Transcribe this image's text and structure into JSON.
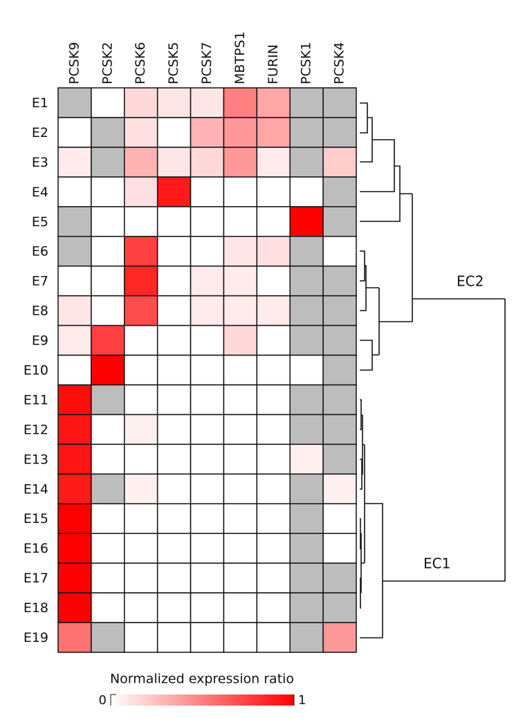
{
  "chart_data": {
    "type": "heatmap",
    "columns": [
      "PCSK9",
      "PCSK2",
      "PCSK6",
      "PCSK5",
      "PCSK7",
      "MBTPS1",
      "FURIN",
      "PCSK1",
      "PCSK4"
    ],
    "rows": [
      "E1",
      "E2",
      "E3",
      "E4",
      "E5",
      "E6",
      "E7",
      "E8",
      "E9",
      "E10",
      "E11",
      "E12",
      "E13",
      "E14",
      "E15",
      "E16",
      "E17",
      "E18",
      "E19"
    ],
    "values": [
      [
        null,
        0,
        0.15,
        0.1,
        0.1,
        0.5,
        0.35,
        null,
        null
      ],
      [
        0,
        null,
        0.12,
        0,
        0.3,
        0.4,
        0.35,
        null,
        null
      ],
      [
        0.08,
        null,
        0.3,
        0.1,
        0.15,
        0.4,
        0.08,
        null,
        0.2
      ],
      [
        0,
        0,
        0.12,
        0.9,
        0,
        0,
        0,
        0,
        null
      ],
      [
        null,
        0,
        0,
        0,
        0,
        0,
        0,
        1,
        null
      ],
      [
        null,
        0,
        0.75,
        0,
        0,
        0.1,
        0.12,
        null,
        0
      ],
      [
        0,
        0,
        0.85,
        0,
        0.08,
        0.08,
        0,
        null,
        null
      ],
      [
        0.1,
        0,
        0.7,
        0,
        0.08,
        0.08,
        0.08,
        null,
        null
      ],
      [
        0.08,
        0.75,
        0,
        0,
        0,
        0.15,
        0,
        null,
        null
      ],
      [
        0,
        1,
        0,
        0,
        0,
        0,
        0,
        0,
        null
      ],
      [
        0.95,
        null,
        0,
        0,
        0,
        0,
        0,
        null,
        null
      ],
      [
        0.92,
        0,
        0.06,
        0,
        0,
        0,
        0,
        null,
        null
      ],
      [
        0.92,
        0,
        0,
        0,
        0,
        0,
        0,
        0.06,
        null
      ],
      [
        0.9,
        null,
        0.06,
        0,
        0,
        0,
        0,
        null,
        0.06
      ],
      [
        1,
        0,
        0,
        0,
        0,
        0,
        0,
        null,
        0
      ],
      [
        1,
        0,
        0,
        0,
        0,
        0,
        0,
        null,
        0
      ],
      [
        1,
        0,
        0,
        0,
        0,
        0,
        0,
        null,
        null
      ],
      [
        1,
        0,
        0,
        0,
        0,
        0,
        0,
        null,
        null
      ],
      [
        0.55,
        null,
        0,
        0,
        0,
        0,
        0,
        null,
        0.4
      ]
    ],
    "colors": [
      "#ffffff",
      "#ff0000"
    ],
    "missing_color": "#bdbdbd",
    "annotations": [
      "EC2",
      "EC1"
    ],
    "colorbar": {
      "label": "Normalized expression ratio",
      "lim": [
        0,
        1
      ],
      "ticks": [
        0,
        1
      ]
    }
  }
}
